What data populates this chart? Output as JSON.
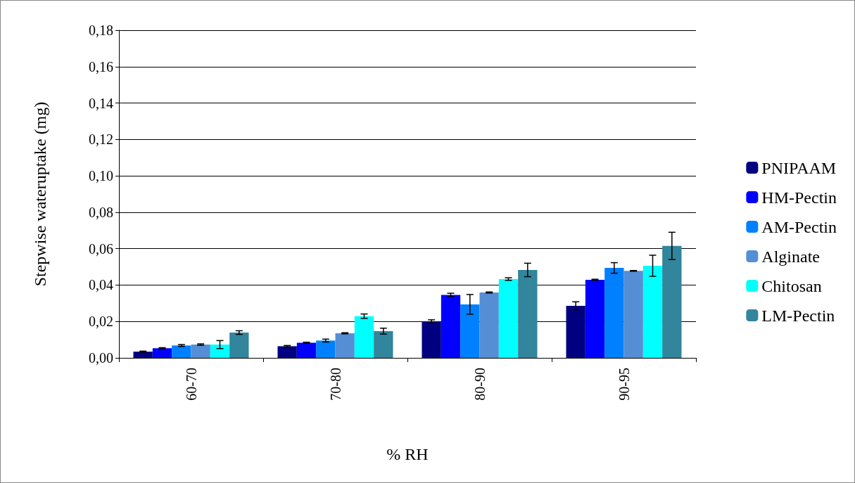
{
  "chart_data": {
    "type": "bar",
    "xlabel": "% RH",
    "ylabel": "Stepwise wateruptake (mg)",
    "categories": [
      "60-70",
      "70-80",
      "80-90",
      "90-95"
    ],
    "series": [
      {
        "name": "PNIPAAM",
        "color": "#000080",
        "values": [
          0.0034,
          0.0064,
          0.02,
          0.0286
        ],
        "errors": [
          0.0003,
          0.0004,
          0.0009,
          0.0022
        ]
      },
      {
        "name": "HM-Pectin",
        "color": "#0000ff",
        "values": [
          0.0053,
          0.0083,
          0.0346,
          0.0429
        ],
        "errors": [
          0.0003,
          0.0003,
          0.0009,
          0.0003
        ]
      },
      {
        "name": "AM-Pectin",
        "color": "#0080ff",
        "values": [
          0.0068,
          0.0095,
          0.0294,
          0.0494
        ],
        "errors": [
          0.0005,
          0.0008,
          0.0054,
          0.0029
        ]
      },
      {
        "name": "Alginate",
        "color": "#558ed5",
        "values": [
          0.0073,
          0.0135,
          0.0359,
          0.0478
        ],
        "errors": [
          0.0004,
          0.0003,
          0.0003,
          0.0002
        ]
      },
      {
        "name": "Chitosan",
        "color": "#00ffff",
        "values": [
          0.0073,
          0.0229,
          0.0433,
          0.0506
        ],
        "errors": [
          0.0022,
          0.0012,
          0.0007,
          0.0058
        ]
      },
      {
        "name": "LM-Pectin",
        "color": "#31859c",
        "values": [
          0.0139,
          0.0147,
          0.0483,
          0.0615
        ],
        "errors": [
          0.001,
          0.0016,
          0.0037,
          0.0075
        ]
      }
    ],
    "ylim": [
      0,
      0.18
    ],
    "yticks": [
      {
        "value": 0,
        "label": "0,00"
      },
      {
        "value": 0.02,
        "label": "0,02"
      },
      {
        "value": 0.04,
        "label": "0,04"
      },
      {
        "value": 0.06,
        "label": "0,06"
      },
      {
        "value": 0.08,
        "label": "0,08"
      },
      {
        "value": 0.1,
        "label": "0,10"
      },
      {
        "value": 0.12,
        "label": "0,12"
      },
      {
        "value": 0.14,
        "label": "0,14"
      },
      {
        "value": 0.16,
        "label": "0,16"
      },
      {
        "value": 0.18,
        "label": "0,18"
      }
    ],
    "grid": "y",
    "legend": "right"
  }
}
